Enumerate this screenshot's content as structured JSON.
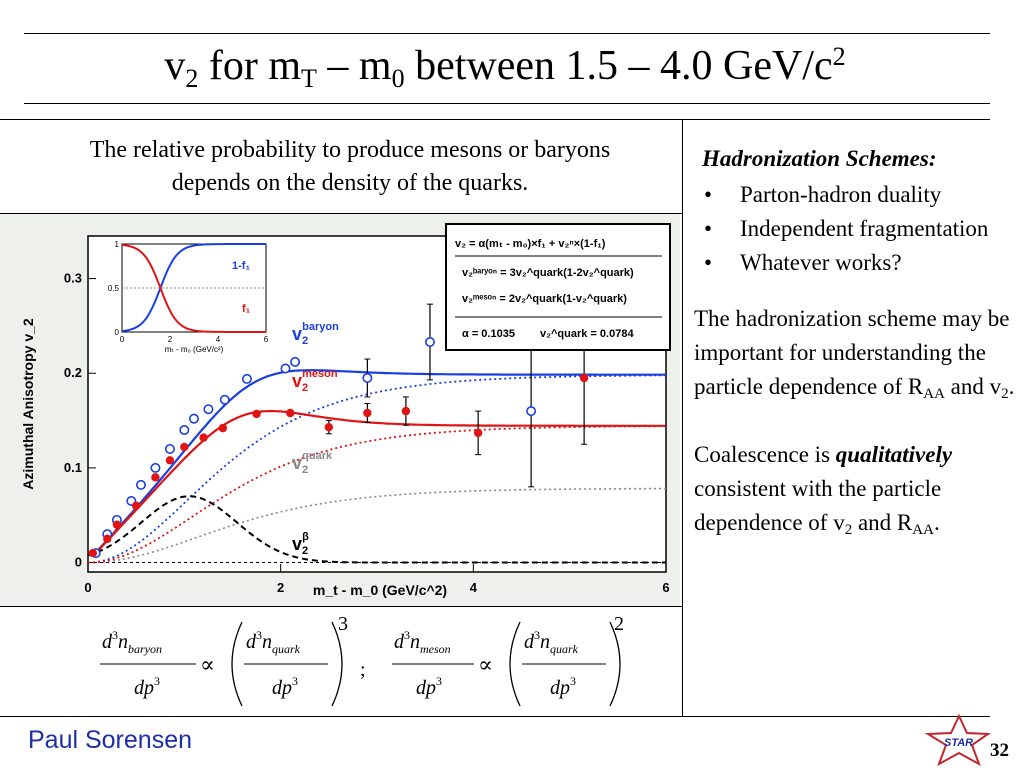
{
  "slide": {
    "title_v": "v",
    "title_v_sub": "2",
    "title_mid1": " for m",
    "title_mT_sub": "T",
    "title_mid2": " – m",
    "title_m0_sub": "0",
    "title_mid3": " between 1.5 – 4.0 GeV/c",
    "title_sup": "2",
    "intro_line1": "The relative probability to produce mesons or baryons",
    "intro_line2": "depends on the density of the quarks.",
    "schemes_heading": "Hadronization Schemes:",
    "bullet_char": "•",
    "bullets": [
      "Parton-hadron duality",
      "Independent fragmentation",
      "Whatever works?"
    ],
    "para1_a": "The hadronization scheme may be important for understanding the particle dependence of R",
    "para1_sub1": "AA",
    "para1_b": " and v",
    "para1_sub2": "2",
    "para1_c": ".",
    "para2_a": "Coalescence is ",
    "para2_em": "qualitatively",
    "para2_b": " consistent with the particle dependence of v",
    "para2_sub1": "2",
    "para2_c": " and R",
    "para2_sub2": "AA",
    "para2_d": ".",
    "footer_name": "Paul Sorensen",
    "logo_text": "STAR",
    "page_number": "32"
  },
  "equation": {
    "d3n": "d",
    "cube": "3",
    "n": "n",
    "baryon_sub": "baryon",
    "meson_sub": "meson",
    "quark_sub": "quark",
    "dp": "dp",
    "prop": "∝",
    "power_baryon": "3",
    "power_meson": "2",
    "separator": ";"
  },
  "colors": {
    "baryon": "#1a3fe0",
    "meson": "#e01414",
    "quark": "#888888",
    "beta": "#000000",
    "footer": "#1e2da8",
    "logo": "#c0262c"
  },
  "chart_data": {
    "type": "scatter",
    "xlabel": "m_t - m_0 (GeV/c^2)",
    "ylabel": "Azimuthal Anisotropy v_2",
    "xlim": [
      0,
      6
    ],
    "ylim": [
      -0.01,
      0.345
    ],
    "xticks": [
      "0",
      "2",
      "4",
      "6"
    ],
    "yticks": [
      "0",
      "0.1",
      "0.2",
      "0.3"
    ],
    "curve_labels": {
      "baryon_v": "v",
      "baryon_sub": "2",
      "baryon_sup": "baryon",
      "meson_v": "v",
      "meson_sub": "2",
      "meson_sup": "meson",
      "quark_v": "v",
      "quark_sub": "2",
      "quark_sup": "quark",
      "beta_v": "v",
      "beta_sub": "2",
      "beta_sup": "β"
    },
    "fit_box": {
      "line1": "v₂ = α(mₜ - m₀)×f₁ + v₂ⁿ×(1-f₁)",
      "line2": "v₂ᵇᵃʳʸᵒⁿ = 3v₂^quark(1-2v₂^quark)",
      "line3": "v₂ᵐᵉˢᵒⁿ = 2v₂^quark(1-v₂^quark)",
      "line4_a": "α = 0.1035",
      "line4_b": "v₂^quark = 0.0784"
    },
    "series": [
      {
        "name": "baryon",
        "marker": "open-circle",
        "x": [
          0.08,
          0.2,
          0.3,
          0.45,
          0.55,
          0.7,
          0.85,
          1.0,
          1.1,
          1.25,
          1.42,
          1.65,
          2.05,
          2.15,
          2.9,
          3.55,
          4.6
        ],
        "y": [
          0.01,
          0.03,
          0.045,
          0.065,
          0.082,
          0.1,
          0.12,
          0.14,
          0.152,
          0.162,
          0.172,
          0.194,
          0.205,
          0.212,
          0.195,
          0.233,
          0.16
        ],
        "yerr": [
          0,
          0,
          0,
          0,
          0,
          0,
          0,
          0,
          0,
          0,
          0,
          0,
          0,
          0,
          0.02,
          0.04,
          0.08
        ]
      },
      {
        "name": "meson",
        "marker": "filled-circle",
        "x": [
          0.05,
          0.2,
          0.3,
          0.5,
          0.7,
          0.85,
          1.0,
          1.2,
          1.4,
          1.75,
          2.1,
          2.5,
          2.9,
          3.3,
          4.05,
          5.15
        ],
        "y": [
          0.01,
          0.025,
          0.04,
          0.06,
          0.09,
          0.108,
          0.122,
          0.132,
          0.142,
          0.157,
          0.158,
          0.143,
          0.158,
          0.16,
          0.137,
          0.195
        ],
        "yerr": [
          0,
          0,
          0,
          0,
          0,
          0,
          0,
          0,
          0,
          0,
          0,
          0.007,
          0.01,
          0.015,
          0.023,
          0.07
        ]
      }
    ],
    "curves": [
      {
        "name": "baryon fit",
        "style": "solid",
        "color": "baryon"
      },
      {
        "name": "meson fit",
        "style": "solid",
        "color": "meson"
      },
      {
        "name": "baryon coalescence",
        "style": "dotted",
        "color": "baryon"
      },
      {
        "name": "meson coalescence",
        "style": "dotted",
        "color": "meson"
      },
      {
        "name": "quark",
        "style": "dotted",
        "color": "quark"
      },
      {
        "name": "beta",
        "style": "dashed",
        "color": "beta"
      }
    ],
    "inset": {
      "xlim": [
        0,
        6
      ],
      "ylim": [
        0,
        1
      ],
      "xticks": [
        "0",
        "2",
        "4",
        "6"
      ],
      "yticks": [
        "0",
        "0.5",
        "1"
      ],
      "xlabel": "mₜ - m₀ (GeV/c²)",
      "label_upper": "1-f₁",
      "label_lower": "f₁"
    }
  }
}
